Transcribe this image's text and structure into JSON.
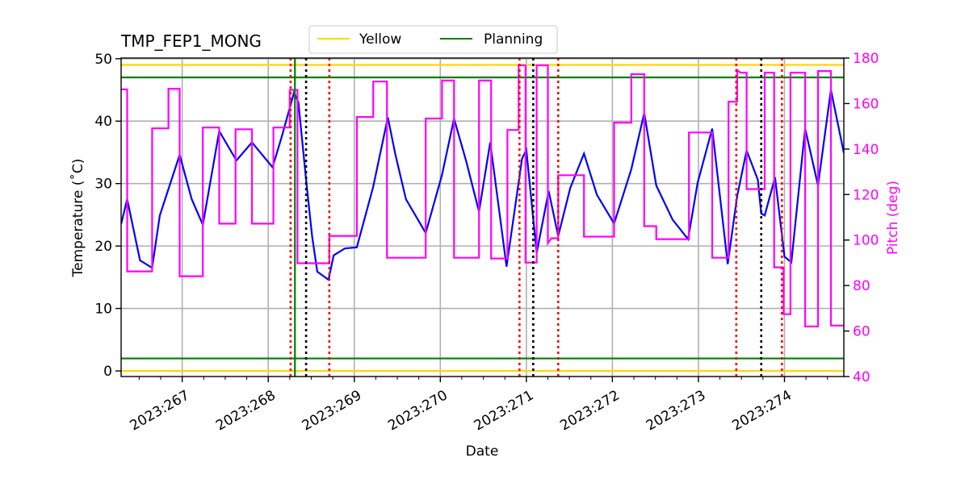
{
  "chart_data": {
    "type": "line",
    "title": "TMP_FEP1_MONG",
    "xlabel": "Date",
    "ylabel": "Temperature ($^\\circ$C)",
    "ylabel_display": "Temperature (˚C)",
    "y2label": "Pitch (deg)",
    "xlim": [
      266.29,
      274.69
    ],
    "ylim": [
      -0.9,
      50.1
    ],
    "y2lim": [
      40,
      180
    ],
    "grid": true,
    "x_ticks": [
      267,
      268,
      269,
      270,
      271,
      272,
      273,
      274
    ],
    "x_tick_labels": [
      "2023:267",
      "2023:268",
      "2023:269",
      "2023:270",
      "2023:271",
      "2023:272",
      "2023:273",
      "2023:274"
    ],
    "y_ticks": [
      0,
      10,
      20,
      30,
      40,
      50
    ],
    "y2_ticks": [
      40,
      60,
      80,
      100,
      120,
      140,
      160,
      180
    ],
    "legend": {
      "placement": "top-center",
      "entries": [
        {
          "name": "Yellow",
          "color": "#ffd700"
        },
        {
          "name": "Planning",
          "color": "#008000"
        }
      ]
    },
    "limit_lines": [
      {
        "kind": "Yellow",
        "value": 49,
        "color": "#ffd700"
      },
      {
        "kind": "Yellow",
        "value": 0,
        "color": "#ffd700"
      },
      {
        "kind": "Planning",
        "value": 47,
        "color": "#008000"
      },
      {
        "kind": "Planning",
        "value": 2,
        "color": "#008000"
      }
    ],
    "vertical_lines": [
      {
        "x": 268.26,
        "color": "#ff0000",
        "style": "dotted"
      },
      {
        "x": 268.71,
        "color": "#ff0000",
        "style": "dotted"
      },
      {
        "x": 270.92,
        "color": "#ff0000",
        "style": "dotted"
      },
      {
        "x": 271.37,
        "color": "#ff0000",
        "style": "dotted"
      },
      {
        "x": 273.44,
        "color": "#ff0000",
        "style": "dotted"
      },
      {
        "x": 273.97,
        "color": "#ff0000",
        "style": "dotted"
      },
      {
        "x": 268.44,
        "color": "#000000",
        "style": "dotted"
      },
      {
        "x": 271.08,
        "color": "#000000",
        "style": "dotted"
      },
      {
        "x": 273.73,
        "color": "#000000",
        "style": "dotted"
      },
      {
        "x": 268.31,
        "color": "#008000",
        "style": "solid"
      }
    ],
    "series": [
      {
        "axis": "left",
        "color": "#0000ff",
        "points": [
          [
            266.29,
            23.5
          ],
          [
            266.36,
            27.5
          ],
          [
            266.51,
            17.7
          ],
          [
            266.65,
            16.5
          ],
          [
            266.74,
            24.9
          ],
          [
            266.97,
            34.6
          ],
          [
            267.11,
            27.5
          ],
          [
            267.24,
            23.4
          ],
          [
            267.43,
            38.4
          ],
          [
            267.63,
            33.7
          ],
          [
            267.81,
            36.6
          ],
          [
            268.05,
            32.6
          ],
          [
            268.15,
            37.2
          ],
          [
            268.3,
            44.6
          ],
          [
            268.35,
            43.0
          ],
          [
            268.45,
            29.3
          ],
          [
            268.51,
            21.6
          ],
          [
            268.57,
            15.9
          ],
          [
            268.7,
            14.6
          ],
          [
            268.76,
            18.5
          ],
          [
            268.89,
            19.6
          ],
          [
            269.03,
            19.8
          ],
          [
            269.22,
            29.5
          ],
          [
            269.39,
            40.6
          ],
          [
            269.48,
            34.5
          ],
          [
            269.6,
            27.5
          ],
          [
            269.83,
            22.1
          ],
          [
            270.02,
            31.4
          ],
          [
            270.16,
            40.4
          ],
          [
            270.3,
            33.6
          ],
          [
            270.45,
            25.5
          ],
          [
            270.58,
            36.6
          ],
          [
            270.77,
            16.7
          ],
          [
            270.95,
            34.0
          ],
          [
            271.0,
            35.4
          ],
          [
            271.12,
            18.9
          ],
          [
            271.26,
            28.8
          ],
          [
            271.37,
            21.6
          ],
          [
            271.51,
            29.3
          ],
          [
            271.67,
            34.8
          ],
          [
            271.82,
            28.2
          ],
          [
            272.02,
            23.6
          ],
          [
            272.22,
            32.3
          ],
          [
            272.37,
            41.3
          ],
          [
            272.51,
            29.7
          ],
          [
            272.7,
            24.2
          ],
          [
            272.88,
            21.1
          ],
          [
            272.99,
            30.1
          ],
          [
            273.16,
            38.8
          ],
          [
            273.34,
            17.1
          ],
          [
            273.45,
            28.0
          ],
          [
            273.56,
            35.3
          ],
          [
            273.69,
            30.6
          ],
          [
            273.73,
            25.2
          ],
          [
            273.77,
            24.9
          ],
          [
            273.89,
            31.0
          ],
          [
            274.0,
            18.3
          ],
          [
            274.08,
            17.4
          ],
          [
            274.24,
            38.8
          ],
          [
            274.39,
            29.7
          ],
          [
            274.54,
            45.0
          ],
          [
            274.69,
            34.9
          ]
        ]
      },
      {
        "axis": "right",
        "color": "#ff00ff",
        "points": [
          [
            266.29,
            166.2
          ],
          [
            266.36,
            166.2
          ],
          [
            266.36,
            86.2
          ],
          [
            266.65,
            86.2
          ],
          [
            266.65,
            149.1
          ],
          [
            266.84,
            149.1
          ],
          [
            266.84,
            166.5
          ],
          [
            266.97,
            166.5
          ],
          [
            266.97,
            84.1
          ],
          [
            267.24,
            84.1
          ],
          [
            267.24,
            149.5
          ],
          [
            267.43,
            149.5
          ],
          [
            267.43,
            107.2
          ],
          [
            267.62,
            107.2
          ],
          [
            267.62,
            148.7
          ],
          [
            267.81,
            148.7
          ],
          [
            267.81,
            107.2
          ],
          [
            268.06,
            107.2
          ],
          [
            268.06,
            149.5
          ],
          [
            268.25,
            149.5
          ],
          [
            268.25,
            166.0
          ],
          [
            268.34,
            166.0
          ],
          [
            268.34,
            89.8
          ],
          [
            268.71,
            89.8
          ],
          [
            268.71,
            101.8
          ],
          [
            269.03,
            101.8
          ],
          [
            269.03,
            154.1
          ],
          [
            269.22,
            154.1
          ],
          [
            269.22,
            169.7
          ],
          [
            269.38,
            169.7
          ],
          [
            269.38,
            92.2
          ],
          [
            269.83,
            92.2
          ],
          [
            269.83,
            153.4
          ],
          [
            270.02,
            153.4
          ],
          [
            270.02,
            170.1
          ],
          [
            270.16,
            170.1
          ],
          [
            270.16,
            92.2
          ],
          [
            270.45,
            92.2
          ],
          [
            270.45,
            170.1
          ],
          [
            270.59,
            170.1
          ],
          [
            270.59,
            91.9
          ],
          [
            270.78,
            91.9
          ],
          [
            270.78,
            148.4
          ],
          [
            270.91,
            148.4
          ],
          [
            270.91,
            176.8
          ],
          [
            270.99,
            176.8
          ],
          [
            270.99,
            90.1
          ],
          [
            271.12,
            90.1
          ],
          [
            271.12,
            176.8
          ],
          [
            271.25,
            176.8
          ],
          [
            271.25,
            98.6
          ],
          [
            271.29,
            100.8
          ],
          [
            271.37,
            100.8
          ],
          [
            271.37,
            128.5
          ],
          [
            271.67,
            128.5
          ],
          [
            271.67,
            101.5
          ],
          [
            272.02,
            101.5
          ],
          [
            272.02,
            151.6
          ],
          [
            272.22,
            151.6
          ],
          [
            272.22,
            172.9
          ],
          [
            272.37,
            172.9
          ],
          [
            272.37,
            106.1
          ],
          [
            272.51,
            106.1
          ],
          [
            272.51,
            100.4
          ],
          [
            272.89,
            100.4
          ],
          [
            272.89,
            147.3
          ],
          [
            273.16,
            147.3
          ],
          [
            273.16,
            92.2
          ],
          [
            273.35,
            92.2
          ],
          [
            273.35,
            160.8
          ],
          [
            273.45,
            160.8
          ],
          [
            273.45,
            174.7
          ],
          [
            273.49,
            173.6
          ],
          [
            273.56,
            173.6
          ],
          [
            273.56,
            122.4
          ],
          [
            273.77,
            122.4
          ],
          [
            273.77,
            173.6
          ],
          [
            273.88,
            173.6
          ],
          [
            273.88,
            88.0
          ],
          [
            273.99,
            88.0
          ],
          [
            273.99,
            67.4
          ],
          [
            274.07,
            67.4
          ],
          [
            274.07,
            173.6
          ],
          [
            274.24,
            173.6
          ],
          [
            274.24,
            62.0
          ],
          [
            274.39,
            62.0
          ],
          [
            274.39,
            174.3
          ],
          [
            274.54,
            174.3
          ],
          [
            274.54,
            62.4
          ],
          [
            274.69,
            62.4
          ]
        ]
      }
    ]
  }
}
